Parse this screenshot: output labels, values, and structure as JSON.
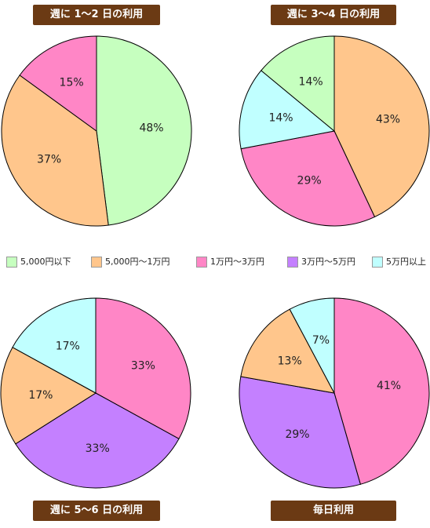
{
  "legend": [
    {
      "label": "5,000円以下",
      "color": "#c6ffbf"
    },
    {
      "label": "5,000円〜1万円",
      "color": "#ffc68c"
    },
    {
      "label": "1万円〜3万円",
      "color": "#ff86c6"
    },
    {
      "label": "3万円〜5万円",
      "color": "#c480ff"
    },
    {
      "label": "5万円以上",
      "color": "#c0ffff"
    }
  ],
  "chart_data": [
    {
      "type": "pie",
      "title": "週に 1〜2 日の利用",
      "slices": [
        {
          "category": "5,000円以下",
          "value": 48,
          "label": "48%"
        },
        {
          "category": "5,000円〜1万円",
          "value": 37,
          "label": "37%"
        },
        {
          "category": "1万円〜3万円",
          "value": 15,
          "label": "15%"
        }
      ]
    },
    {
      "type": "pie",
      "title": "週に 3〜4 日の利用",
      "slices": [
        {
          "category": "5,000円〜1万円",
          "value": 43,
          "label": "43%"
        },
        {
          "category": "1万円〜3万円",
          "value": 29,
          "label": "29%"
        },
        {
          "category": "5万円以上",
          "value": 14,
          "label": "14%"
        },
        {
          "category": "5,000円以下",
          "value": 14,
          "label": "14%"
        }
      ]
    },
    {
      "type": "pie",
      "title": "週に 5〜6 日の利用",
      "slices": [
        {
          "category": "1万円〜3万円",
          "value": 33,
          "label": "33%"
        },
        {
          "category": "3万円〜5万円",
          "value": 33,
          "label": "33%"
        },
        {
          "category": "5,000円〜1万円",
          "value": 17,
          "label": "17%"
        },
        {
          "category": "5万円以上",
          "value": 17,
          "label": "17%"
        }
      ]
    },
    {
      "type": "pie",
      "title": "毎日利用",
      "slices": [
        {
          "category": "1万円〜3万円",
          "value": 41,
          "label": "41%"
        },
        {
          "category": "3万円〜5万円",
          "value": 29,
          "label": "29%"
        },
        {
          "category": "5,000円〜1万円",
          "value": 13,
          "label": "13%"
        },
        {
          "category": "5万円以上",
          "value": 7,
          "label": "7%"
        }
      ]
    }
  ]
}
